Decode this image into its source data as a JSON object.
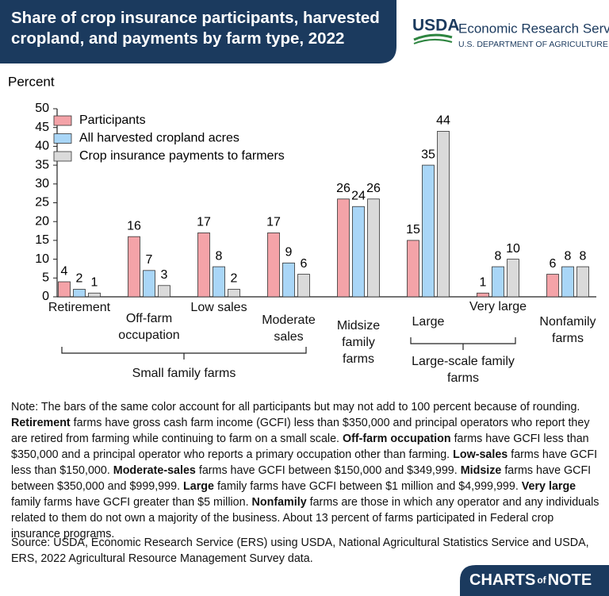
{
  "header": {
    "title": "Share of crop insurance participants, harvested cropland, and payments by farm type, 2022",
    "logo": "USDA",
    "agency": "Economic Research Service",
    "department": "U.S. DEPARTMENT OF AGRICULTURE"
  },
  "chart_data": {
    "type": "bar",
    "y_label": "Percent",
    "categories": [
      "Retirement",
      "Off-farm occupation",
      "Low sales",
      "Moderate sales",
      "Midsize family farms",
      "Large",
      "Very large",
      "Nonfamily farms"
    ],
    "series": [
      {
        "name": "Participants",
        "color": "#f4a3a8",
        "values": [
          4,
          16,
          17,
          17,
          26,
          15,
          1,
          6
        ]
      },
      {
        "name": "All harvested cropland acres",
        "color": "#a9d6f7",
        "values": [
          2,
          7,
          8,
          9,
          24,
          35,
          8,
          8
        ]
      },
      {
        "name": "Crop insurance payments to farmers",
        "color": "#dadada",
        "values": [
          1,
          3,
          2,
          6,
          26,
          44,
          10,
          8
        ]
      }
    ],
    "ylim": [
      0,
      50
    ],
    "yticks": [
      0,
      5,
      10,
      15,
      20,
      25,
      30,
      35,
      40,
      45,
      50
    ],
    "grid": false,
    "legend": "upper left",
    "category_groups": [
      {
        "label": "Small family farms",
        "categories": [
          "Retirement",
          "Off-farm occupation",
          "Low sales",
          "Moderate sales"
        ]
      },
      {
        "label": "Large-scale family farms",
        "categories": [
          "Large",
          "Very large"
        ]
      }
    ]
  },
  "note": [
    {
      "text": "Note: The bars of the same color account for all participants but may not add to 100 percent because of rounding. ",
      "bold": false
    },
    {
      "text": "Retirement",
      "bold": true
    },
    {
      "text": " farms have gross cash farm income (GCFI) less than $350,000 and principal operators who report they are retired from farming while continuing to farm on a small scale. ",
      "bold": false
    },
    {
      "text": "Off-farm occupation",
      "bold": true
    },
    {
      "text": " farms have GCFI less than $350,000 and a principal operator who reports a primary occupation other than farming. ",
      "bold": false
    },
    {
      "text": "Low-sales",
      "bold": true
    },
    {
      "text": " farms have GCFI less than $150,000. ",
      "bold": false
    },
    {
      "text": "Moderate-sales",
      "bold": true
    },
    {
      "text": " farms have GCFI between $150,000 and $349,999. ",
      "bold": false
    },
    {
      "text": "Midsize",
      "bold": true
    },
    {
      "text": " farms have GCFI between $350,000 and $999,999. ",
      "bold": false
    },
    {
      "text": "Large",
      "bold": true
    },
    {
      "text": " family farms have GCFI between $1 million and $4,999,999. ",
      "bold": false
    },
    {
      "text": "Very large",
      "bold": true
    },
    {
      "text": " family farms have GCFI greater than $5 million. ",
      "bold": false
    },
    {
      "text": "Nonfamily",
      "bold": true
    },
    {
      "text": " farms are those in which any operator and any individuals related to them do not own a majority of the business. About 13 percent of farms participated in Federal crop insurance programs.",
      "bold": false
    }
  ],
  "source": "Source: USDA, Economic Research Service (ERS) using USDA, National Agricultural Statistics Service and USDA, ERS, 2022 Agricultural Resource Management Survey data.",
  "footer": {
    "brand": "CHARTS",
    "of": "of",
    "brand_end": "NOTE"
  }
}
